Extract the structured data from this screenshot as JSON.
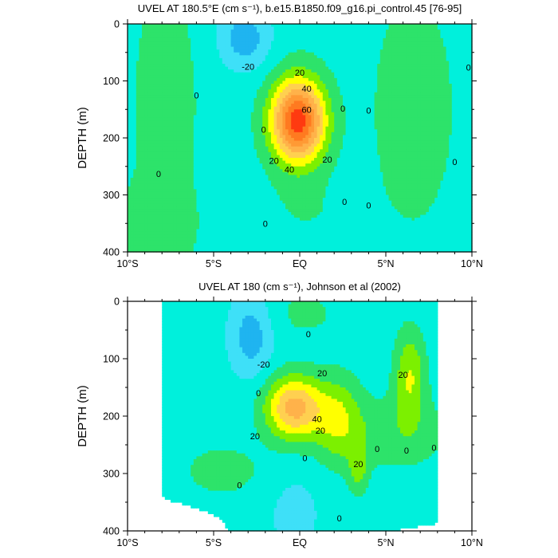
{
  "chart_data": [
    {
      "type": "contour",
      "title": "UVEL AT 180.5°E (cm s⁻¹), b.e15.B1850.f09_g16.pi_control.45 [76-95]",
      "xlabel": "",
      "ylabel": "DEPTH (m)",
      "xlim": [
        -10,
        10
      ],
      "ylim": [
        400,
        0
      ],
      "x_ticks": [
        "10°S",
        "5°S",
        "EQ",
        "5°N",
        "10°N"
      ],
      "x_tick_values": [
        -10,
        -5,
        0,
        5,
        10
      ],
      "y_ticks": [
        "0",
        "100",
        "200",
        "300",
        "400"
      ],
      "y_tick_values": [
        0,
        100,
        200,
        300,
        400
      ],
      "contour_levels": [
        -30,
        -20,
        -10,
        0,
        10,
        20,
        30,
        40,
        50,
        60,
        70
      ],
      "level_colors": {
        "-30": "#1fb4f0",
        "-20": "#3ee0f8",
        "-10": "#00f0dc",
        "0": "#2de36a",
        "10": "#7cf000",
        "20": "#ffff00",
        "30": "#ffd050",
        "40": "#ffb24a",
        "50": "#ff9a35",
        "60": "#ff7a20",
        "70": "#ff3a10"
      },
      "contour_labels": [
        {
          "text": "-20",
          "x": -3.0,
          "y": 75
        },
        {
          "text": "0",
          "x": -6.0,
          "y": 125
        },
        {
          "text": "0",
          "x": -2.1,
          "y": 185
        },
        {
          "text": "0",
          "x": -8.2,
          "y": 263
        },
        {
          "text": "0",
          "x": -2.0,
          "y": 350
        },
        {
          "text": "0",
          "x": 2.5,
          "y": 148
        },
        {
          "text": "0",
          "x": 2.6,
          "y": 312
        },
        {
          "text": "0",
          "x": 4.0,
          "y": 152
        },
        {
          "text": "0",
          "x": 4.0,
          "y": 318
        },
        {
          "text": "0",
          "x": 9.0,
          "y": 242
        },
        {
          "text": "0",
          "x": 9.8,
          "y": 76
        },
        {
          "text": "20",
          "x": 0.0,
          "y": 85
        },
        {
          "text": "40",
          "x": 0.4,
          "y": 113
        },
        {
          "text": "60",
          "x": 0.4,
          "y": 150
        },
        {
          "text": "20",
          "x": -1.5,
          "y": 240
        },
        {
          "text": "40",
          "x": -0.6,
          "y": 255
        },
        {
          "text": "20",
          "x": 1.6,
          "y": 238
        }
      ]
    },
    {
      "type": "contour",
      "title": "UVEL AT 180 (cm s⁻¹), Johnson et al (2002)",
      "xlabel": "",
      "ylabel": "DEPTH (m)",
      "xlim": [
        -10,
        10
      ],
      "ylim": [
        400,
        0
      ],
      "x_ticks": [
        "10°S",
        "5°S",
        "EQ",
        "5°N",
        "10°N"
      ],
      "x_tick_values": [
        -10,
        -5,
        0,
        5,
        10
      ],
      "y_ticks": [
        "0",
        "100",
        "200",
        "300",
        "400"
      ],
      "y_tick_values": [
        0,
        100,
        200,
        300,
        400
      ],
      "data_extent_x": [
        -8,
        8
      ],
      "contour_labels": [
        {
          "text": "-20",
          "x": -2.1,
          "y": 110
        },
        {
          "text": "0",
          "x": -2.4,
          "y": 160
        },
        {
          "text": "0",
          "x": 0.5,
          "y": 57
        },
        {
          "text": "20",
          "x": 1.3,
          "y": 125
        },
        {
          "text": "40",
          "x": 1.0,
          "y": 205
        },
        {
          "text": "20",
          "x": 1.2,
          "y": 225
        },
        {
          "text": "20",
          "x": -2.6,
          "y": 235
        },
        {
          "text": "0",
          "x": 0.3,
          "y": 273
        },
        {
          "text": "20",
          "x": 3.4,
          "y": 283
        },
        {
          "text": "0",
          "x": 4.5,
          "y": 257
        },
        {
          "text": "0",
          "x": 6.2,
          "y": 260
        },
        {
          "text": "0",
          "x": 7.8,
          "y": 255
        },
        {
          "text": "0",
          "x": -3.5,
          "y": 320
        },
        {
          "text": "0",
          "x": 2.3,
          "y": 378
        },
        {
          "text": "20",
          "x": 6.0,
          "y": 128
        }
      ]
    }
  ]
}
